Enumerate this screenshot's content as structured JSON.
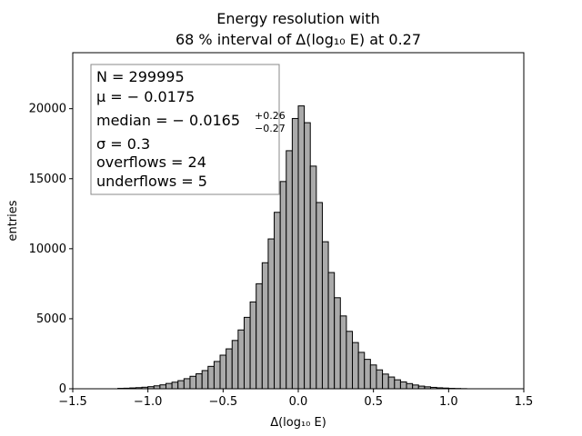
{
  "chart_data": {
    "type": "bar",
    "title_line1": "Energy resolution with",
    "title_line2": "68 % interval of Δ(log₁₀ E) at 0.27",
    "xlabel": "Δ(log₁₀ E)",
    "ylabel": "entries",
    "xlim": [
      -1.5,
      1.5
    ],
    "ylim": [
      0,
      24000
    ],
    "bin_width": 0.04,
    "bin_start": -1.2,
    "x_ticks": [
      -1.5,
      -1.0,
      -0.5,
      0.0,
      0.5,
      1.0,
      1.5
    ],
    "x_tick_labels": [
      "−1.5",
      "−1.0",
      "−0.5",
      "0.0",
      "0.5",
      "1.0",
      "1.5"
    ],
    "y_ticks": [
      0,
      5000,
      10000,
      15000,
      20000
    ],
    "y_tick_labels": [
      "0",
      "5000",
      "10000",
      "15000",
      "20000"
    ],
    "bar_color": "#aaaaaa",
    "edge_color": "#000000",
    "values": [
      30,
      40,
      60,
      80,
      110,
      150,
      210,
      280,
      380,
      470,
      580,
      720,
      890,
      1070,
      1300,
      1600,
      1950,
      2400,
      2850,
      3450,
      4200,
      5100,
      6200,
      7500,
      9000,
      10700,
      12600,
      14800,
      17000,
      19300,
      20200,
      19000,
      15900,
      13300,
      10500,
      8300,
      6500,
      5200,
      4100,
      3300,
      2600,
      2100,
      1700,
      1350,
      1050,
      840,
      640,
      490,
      370,
      270,
      190,
      140,
      100,
      70,
      50,
      30,
      20,
      10
    ],
    "stats_box": {
      "lines": [
        "N = 299995",
        "μ = − 0.0175",
        "median = − 0.0165",
        "σ = 0.3",
        "overflows = 24",
        "underflows = 5"
      ],
      "median_sup": "+0.26",
      "median_sub": "−0.27",
      "placement": "top-left"
    }
  }
}
